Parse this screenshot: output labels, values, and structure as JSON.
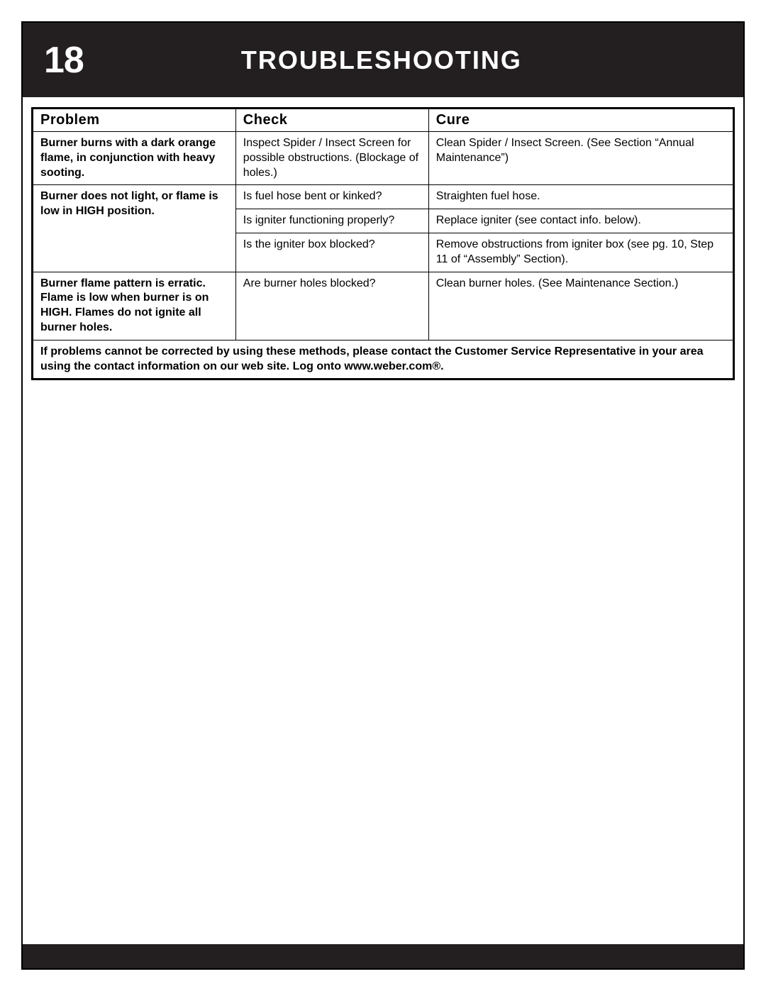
{
  "page": {
    "number": "18",
    "title": "TROUBLESHOOTING"
  },
  "table": {
    "headers": {
      "problem": "Problem",
      "check": "Check",
      "cure": "Cure"
    },
    "rows": [
      {
        "problem": "Burner burns with a dark orange flame, in conjunction with heavy sooting.",
        "check": "Inspect Spider / Insect Screen for possible obstructions. (Blockage of holes.)",
        "cure": "Clean Spider / Insect Screen. (See Section “Annual Maintenance”)"
      },
      {
        "problem": "Burner does not light, or flame is low in HIGH position.",
        "problem_rowspan": 3,
        "check": "Is fuel hose bent or kinked?",
        "cure": "Straighten fuel hose."
      },
      {
        "check": "Is igniter functioning properly?",
        "cure": "Replace igniter (see contact info. below)."
      },
      {
        "check": "Is the igniter box blocked?",
        "cure": "Remove obstructions from igniter box (see pg. 10, Step 11 of “Assembly” Section)."
      },
      {
        "problem": "Burner flame pattern is erratic. Flame is low when burner is on HIGH. Flames do not ignite all burner holes.",
        "check": "Are burner holes blocked?",
        "cure": "Clean burner holes. (See Maintenance Section.)"
      }
    ],
    "footer": "If problems cannot be corrected by using these methods, please contact the Customer Service Representative in your area using the contact information on our web site. Log onto www.weber.com®."
  },
  "styling": {
    "header_background": "#231f20",
    "header_text_color": "#ffffff",
    "page_number_fontsize": 52,
    "title_fontsize": 36,
    "table_border_color": "#000000",
    "table_outer_border_width": 3,
    "table_inner_border_width": 1,
    "th_fontsize": 20,
    "td_fontsize": 16,
    "column_widths_percent": [
      29,
      27.5,
      43.5
    ],
    "footer_bar_background": "#231f20",
    "footer_bar_height": 34,
    "page_background": "#ffffff"
  }
}
